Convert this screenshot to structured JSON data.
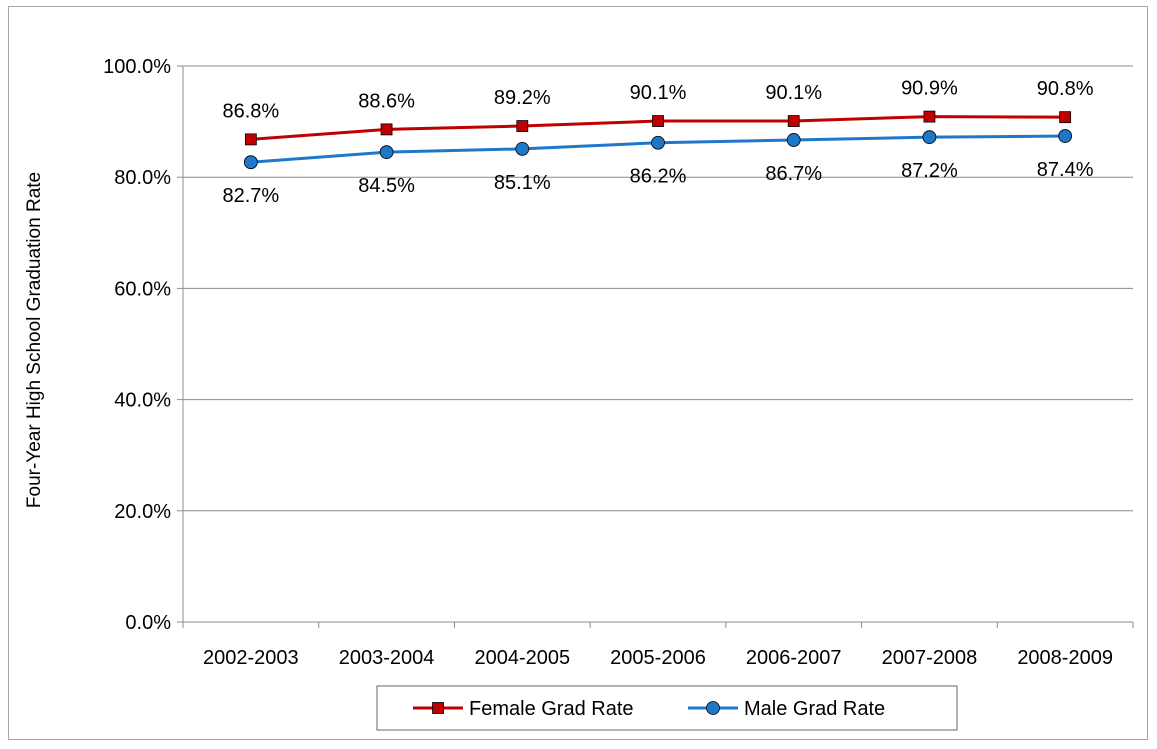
{
  "chart_data": {
    "type": "line",
    "ylabel": "Four-Year High School Graduation Rate",
    "xlabel": "",
    "ylim": [
      0,
      100
    ],
    "ytick_step": 20,
    "ytick_labels": [
      "0.0%",
      "20.0%",
      "40.0%",
      "60.0%",
      "80.0%",
      "100.0%"
    ],
    "grid": "horizontal",
    "legend_position": "bottom-center",
    "categories": [
      "2002-2003",
      "2003-2004",
      "2004-2005",
      "2005-2006",
      "2006-2007",
      "2007-2008",
      "2008-2009"
    ],
    "series": [
      {
        "name": "Female Grad Rate",
        "color": "#c00000",
        "marker": "square",
        "label_position": "above",
        "values": [
          86.8,
          88.6,
          89.2,
          90.1,
          90.1,
          90.9,
          90.8
        ],
        "labels": [
          "86.8%",
          "88.6%",
          "89.2%",
          "90.1%",
          "90.1%",
          "90.9%",
          "90.8%"
        ]
      },
      {
        "name": "Male Grad Rate",
        "color": "#1f77c8",
        "marker": "circle",
        "label_position": "below",
        "values": [
          82.7,
          84.5,
          85.1,
          86.2,
          86.7,
          87.2,
          87.4
        ],
        "labels": [
          "82.7%",
          "84.5%",
          "85.1%",
          "86.2%",
          "86.7%",
          "87.2%",
          "87.4%"
        ]
      }
    ]
  }
}
